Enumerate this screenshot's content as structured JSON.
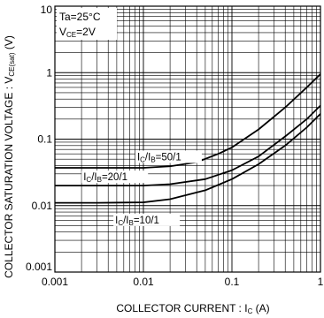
{
  "chart_data": {
    "type": "line",
    "title": "",
    "xlabel": "COLLECTOR  CURRENT : I",
    "xlabel_sub": "C",
    "xlabel_unit": " (A)",
    "ylabel": "COLLECTOR SATURATION VOLTAGE : V",
    "ylabel_sub": "CE(sat)",
    "ylabel_unit": " (V)",
    "xscale": "log",
    "yscale": "log",
    "xlim": [
      0.001,
      1
    ],
    "ylim": [
      0.001,
      10
    ],
    "grid": true,
    "x_ticks": [
      {
        "value": 0.001,
        "label": "0.001"
      },
      {
        "value": 0.01,
        "label": "0.01"
      },
      {
        "value": 0.1,
        "label": "0.1"
      },
      {
        "value": 1,
        "label": "1"
      }
    ],
    "y_ticks": [
      {
        "value": 10,
        "label": "10"
      },
      {
        "value": 1,
        "label": "1"
      },
      {
        "value": 0.1,
        "label": "0.1"
      },
      {
        "value": 0.01,
        "label": "0.01"
      },
      {
        "value": 0.001,
        "label": "0.001"
      }
    ],
    "conditions": [
      {
        "text": "Ta=25°C"
      },
      {
        "text": "V",
        "sub": "CE",
        "rest": "=2V"
      }
    ],
    "series": [
      {
        "label": "I",
        "label_sub1": "C",
        "label_mid": "/I",
        "label_sub2": "B",
        "label_rest": "=50/1",
        "label_at": [
          0.0085,
          0.048
        ],
        "x": [
          0.001,
          0.003,
          0.01,
          0.02,
          0.04,
          0.07,
          0.1,
          0.2,
          0.4,
          0.7,
          1
        ],
        "y": [
          0.037,
          0.037,
          0.037,
          0.039,
          0.045,
          0.06,
          0.075,
          0.14,
          0.3,
          0.6,
          0.95
        ]
      },
      {
        "label": "I",
        "label_sub1": "C",
        "label_mid": "/I",
        "label_sub2": "B",
        "label_rest": "=20/1",
        "label_at": [
          0.0021,
          0.024
        ],
        "x": [
          0.001,
          0.003,
          0.01,
          0.02,
          0.05,
          0.1,
          0.2,
          0.4,
          0.7,
          1
        ],
        "y": [
          0.02,
          0.02,
          0.02,
          0.021,
          0.025,
          0.034,
          0.055,
          0.11,
          0.2,
          0.32
        ]
      },
      {
        "label": "I",
        "label_sub1": "C",
        "label_mid": "/I",
        "label_sub2": "B",
        "label_rest": "=10/1",
        "label_at": [
          0.0048,
          0.0054
        ],
        "x": [
          0.001,
          0.003,
          0.01,
          0.02,
          0.05,
          0.1,
          0.2,
          0.4,
          0.7,
          1
        ],
        "y": [
          0.011,
          0.011,
          0.0112,
          0.0125,
          0.017,
          0.025,
          0.042,
          0.08,
          0.15,
          0.24
        ]
      }
    ]
  }
}
